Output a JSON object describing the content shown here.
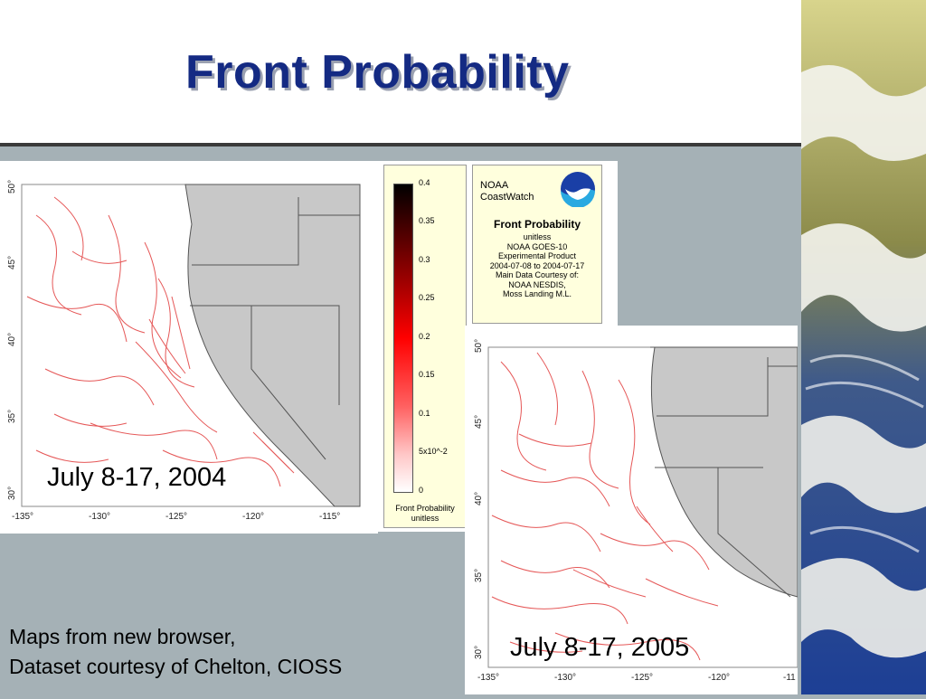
{
  "slide": {
    "title": "Front Probability",
    "footer_lines": [
      "Maps from new browser,",
      "Dataset courtesy of Chelton, CIOSS"
    ]
  },
  "maps": [
    {
      "caption": "July 8-17, 2004",
      "lat_ticks": [
        "50°",
        "45°",
        "40°",
        "35°",
        "30°"
      ],
      "lon_ticks": [
        "-135°",
        "-130°",
        "-125°",
        "-120°",
        "-115°"
      ]
    },
    {
      "caption": "July 8-17, 2005",
      "lat_ticks": [
        "50°",
        "45°",
        "40°",
        "35°",
        "30°"
      ],
      "lon_ticks": [
        "-135°",
        "-130°",
        "-125°",
        "-120°",
        "-11"
      ]
    }
  ],
  "colorbar": {
    "ticks": [
      "0.4",
      "0.35",
      "0.3",
      "0.25",
      "0.2",
      "0.15",
      "0.1",
      "5x10^-2",
      "0"
    ],
    "label_lines": [
      "Front Probability",
      "unitless"
    ]
  },
  "info_box": {
    "org_lines": [
      "NOAA",
      "CoastWatch"
    ],
    "title": "Front Probability",
    "lines": [
      "unitless",
      "NOAA GOES-10",
      "Experimental Product",
      "2004-07-08 to 2004-07-17",
      "Main Data Courtesy of:",
      "NOAA NESDIS,",
      "Moss Landing M.L."
    ]
  },
  "colors": {
    "title": "#142a83",
    "background": "#a5b1b6",
    "land": "#c8c8c8",
    "front": "#dd2020",
    "info_bg": "#ffffdd"
  }
}
